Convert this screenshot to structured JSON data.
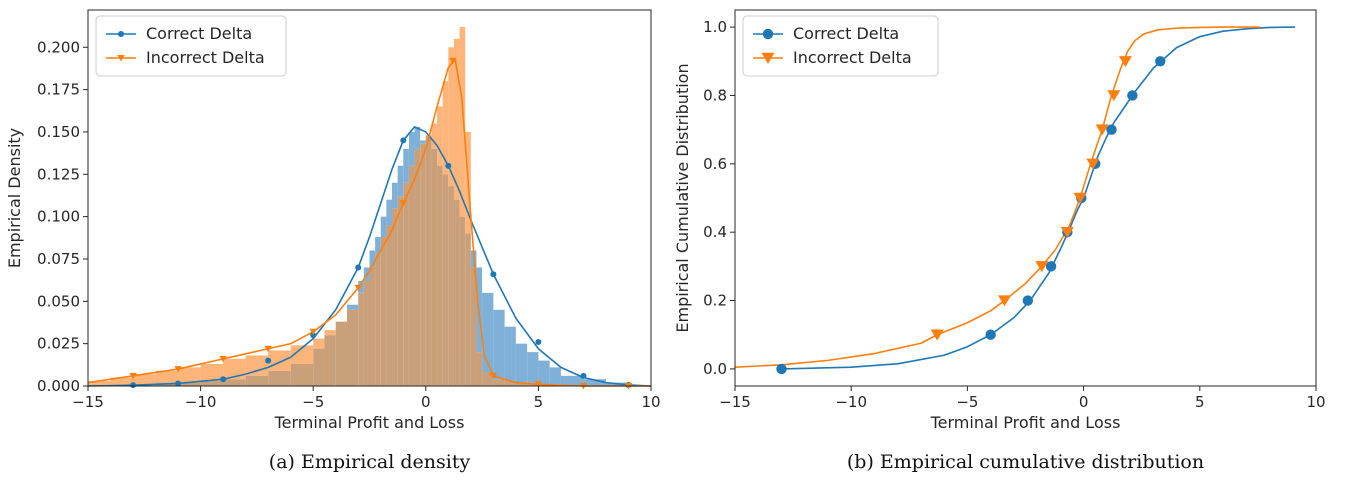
{
  "chart_data": [
    {
      "type": "histogram+line",
      "caption": "(a) Empirical density",
      "xlabel": "Terminal Profit and Loss",
      "ylabel": "Empirical Density",
      "xlim": [
        -15,
        10
      ],
      "ylim": [
        0,
        0.222
      ],
      "xticks": [
        -15,
        -10,
        -5,
        0,
        5,
        10
      ],
      "yticks": [
        0.0,
        0.025,
        0.05,
        0.075,
        0.1,
        0.125,
        0.15,
        0.175,
        0.2
      ],
      "xtick_labels": [
        "−15",
        "−10",
        "−5",
        "0",
        "5",
        "10"
      ],
      "ytick_labels": [
        "0.000",
        "0.025",
        "0.050",
        "0.075",
        "0.100",
        "0.125",
        "0.150",
        "0.175",
        "0.200"
      ],
      "legend": {
        "position": "upper left",
        "entries": [
          "Correct Delta",
          "Incorrect Delta"
        ]
      },
      "colors": {
        "correct": "#1f77b4",
        "incorrect": "#ff7f0e",
        "correct_hist": "#7fb0d8",
        "incorrect_hist": "#ffb57a",
        "overlap": "#c9a07a"
      },
      "histograms": {
        "bin_edges": [
          -15,
          -14,
          -13,
          -12,
          -11,
          -10,
          -9,
          -8,
          -7,
          -6,
          -5,
          -4.5,
          -4,
          -3.5,
          -3,
          -2.75,
          -2.5,
          -2.25,
          -2,
          -1.75,
          -1.5,
          -1.25,
          -1,
          -0.75,
          -0.5,
          -0.25,
          0,
          0.25,
          0.5,
          0.75,
          1,
          1.25,
          1.5,
          1.75,
          2,
          2.25,
          2.5,
          3,
          3.5,
          4,
          4.5,
          5,
          5.5,
          6,
          7,
          8,
          9,
          10
        ],
        "correct": [
          0.0,
          0.0,
          0.0,
          0.002,
          0.002,
          0.003,
          0.004,
          0.006,
          0.009,
          0.013,
          0.022,
          0.03,
          0.038,
          0.048,
          0.062,
          0.07,
          0.08,
          0.088,
          0.1,
          0.11,
          0.12,
          0.13,
          0.14,
          0.15,
          0.153,
          0.145,
          0.148,
          0.14,
          0.13,
          0.125,
          0.118,
          0.11,
          0.1,
          0.09,
          0.08,
          0.07,
          0.055,
          0.045,
          0.035,
          0.025,
          0.02,
          0.015,
          0.011,
          0.006,
          0.004,
          0.002,
          0.0
        ],
        "incorrect": [
          0.003,
          0.005,
          0.007,
          0.009,
          0.011,
          0.013,
          0.016,
          0.018,
          0.021,
          0.024,
          0.028,
          0.033,
          0.038,
          0.045,
          0.055,
          0.062,
          0.07,
          0.078,
          0.088,
          0.095,
          0.105,
          0.112,
          0.12,
          0.13,
          0.14,
          0.143,
          0.148,
          0.155,
          0.165,
          0.18,
          0.2,
          0.205,
          0.212,
          0.15,
          0.07,
          0.02,
          0.008,
          0.004,
          0.003,
          0.002,
          0.002,
          0.001,
          0.001,
          0.0,
          0.0,
          0.0,
          0.0
        ]
      },
      "series": [
        {
          "name": "Correct Delta",
          "x": [
            -15,
            -13,
            -11,
            -9,
            -8,
            -7,
            -6,
            -5,
            -4,
            -3,
            -2.5,
            -2,
            -1.5,
            -1,
            -0.5,
            0,
            0.5,
            1,
            1.5,
            2,
            2.5,
            3,
            4,
            5,
            6,
            7,
            8,
            9,
            10
          ],
          "y": [
            0.0,
            0.0005,
            0.0015,
            0.004,
            0.007,
            0.011,
            0.017,
            0.028,
            0.045,
            0.07,
            0.088,
            0.108,
            0.128,
            0.145,
            0.153,
            0.15,
            0.142,
            0.13,
            0.115,
            0.098,
            0.082,
            0.066,
            0.04,
            0.022,
            0.011,
            0.005,
            0.002,
            0.0006,
            0.0
          ],
          "marker_x": [
            -13,
            -11,
            -9,
            -7,
            -5,
            -3,
            -1,
            1,
            3,
            5,
            7,
            9
          ],
          "marker_y": [
            0.0005,
            0.0015,
            0.004,
            0.015,
            0.03,
            0.07,
            0.145,
            0.13,
            0.066,
            0.026,
            0.006,
            0.0006
          ]
        },
        {
          "name": "Incorrect Delta",
          "x": [
            -15,
            -13,
            -11,
            -9,
            -8,
            -7,
            -6,
            -5,
            -4,
            -3,
            -2.5,
            -2,
            -1.5,
            -1,
            -0.5,
            0,
            0.5,
            1,
            1.3,
            1.6,
            2,
            2.3,
            2.6,
            3,
            4,
            5,
            7,
            9,
            10
          ],
          "y": [
            0.002,
            0.006,
            0.01,
            0.016,
            0.019,
            0.022,
            0.025,
            0.032,
            0.042,
            0.058,
            0.068,
            0.08,
            0.092,
            0.108,
            0.122,
            0.14,
            0.165,
            0.188,
            0.193,
            0.17,
            0.1,
            0.05,
            0.018,
            0.006,
            0.002,
            0.001,
            0.0,
            0.0,
            0.0
          ],
          "marker_x": [
            -13,
            -11,
            -9,
            -7,
            -5,
            -3,
            -1,
            1.2,
            3,
            5,
            7,
            9
          ],
          "marker_y": [
            0.006,
            0.01,
            0.016,
            0.022,
            0.032,
            0.058,
            0.108,
            0.192,
            0.006,
            0.001,
            0.0,
            0.0
          ]
        }
      ]
    },
    {
      "type": "line",
      "caption": "(b) Empirical cumulative distribution",
      "xlabel": "Terminal Profit and Loss",
      "ylabel": "Empirical Cumulative Distribution",
      "xlim": [
        -15,
        10
      ],
      "ylim": [
        -0.05,
        1.05
      ],
      "xticks": [
        -15,
        -10,
        -5,
        0,
        5,
        10
      ],
      "yticks": [
        0.0,
        0.2,
        0.4,
        0.6,
        0.8,
        1.0
      ],
      "xtick_labels": [
        "−15",
        "−10",
        "−5",
        "0",
        "5",
        "10"
      ],
      "ytick_labels": [
        "0.0",
        "0.2",
        "0.4",
        "0.6",
        "0.8",
        "1.0"
      ],
      "legend": {
        "position": "upper left",
        "entries": [
          "Correct Delta",
          "Incorrect Delta"
        ]
      },
      "colors": {
        "correct": "#1f77b4",
        "incorrect": "#ff7f0e"
      },
      "series": [
        {
          "name": "Correct Delta",
          "x": [
            -13,
            -10,
            -8,
            -6,
            -5,
            -4,
            -3,
            -2.3,
            -1.5,
            -1,
            -0.6,
            -0.3,
            0,
            0.3,
            0.6,
            1,
            1.3,
            1.7,
            2.2,
            3,
            4,
            5,
            6,
            7,
            8,
            9.1
          ],
          "y": [
            0.0,
            0.005,
            0.015,
            0.04,
            0.065,
            0.1,
            0.15,
            0.2,
            0.28,
            0.35,
            0.41,
            0.46,
            0.5,
            0.56,
            0.62,
            0.68,
            0.72,
            0.76,
            0.81,
            0.88,
            0.94,
            0.972,
            0.988,
            0.995,
            0.999,
            1.0
          ],
          "marker_x": [
            -13,
            -4,
            -2.4,
            -1.4,
            -0.7,
            -0.1,
            0.5,
            1.2,
            2.1,
            3.3
          ],
          "marker_y": [
            0.0,
            0.1,
            0.2,
            0.3,
            0.4,
            0.5,
            0.6,
            0.7,
            0.8,
            0.9
          ]
        },
        {
          "name": "Incorrect Delta",
          "x": [
            -15,
            -13,
            -11,
            -9,
            -7,
            -6.3,
            -5,
            -4,
            -3.4,
            -2.5,
            -1.8,
            -1.2,
            -0.6,
            -0.15,
            0.3,
            0.8,
            1.2,
            1.6,
            1.9,
            2.2,
            2.6,
            3.2,
            4,
            5,
            6,
            7.6
          ],
          "y": [
            0.005,
            0.012,
            0.025,
            0.045,
            0.075,
            0.1,
            0.135,
            0.17,
            0.2,
            0.25,
            0.3,
            0.35,
            0.42,
            0.5,
            0.6,
            0.7,
            0.8,
            0.88,
            0.93,
            0.96,
            0.98,
            0.992,
            0.997,
            0.999,
            1.0,
            1.0
          ],
          "marker_x": [
            -6.3,
            -3.4,
            -1.8,
            -0.7,
            -0.15,
            0.4,
            0.8,
            1.3,
            1.8
          ],
          "marker_y": [
            0.1,
            0.2,
            0.3,
            0.4,
            0.5,
            0.6,
            0.7,
            0.8,
            0.9
          ]
        }
      ]
    }
  ]
}
